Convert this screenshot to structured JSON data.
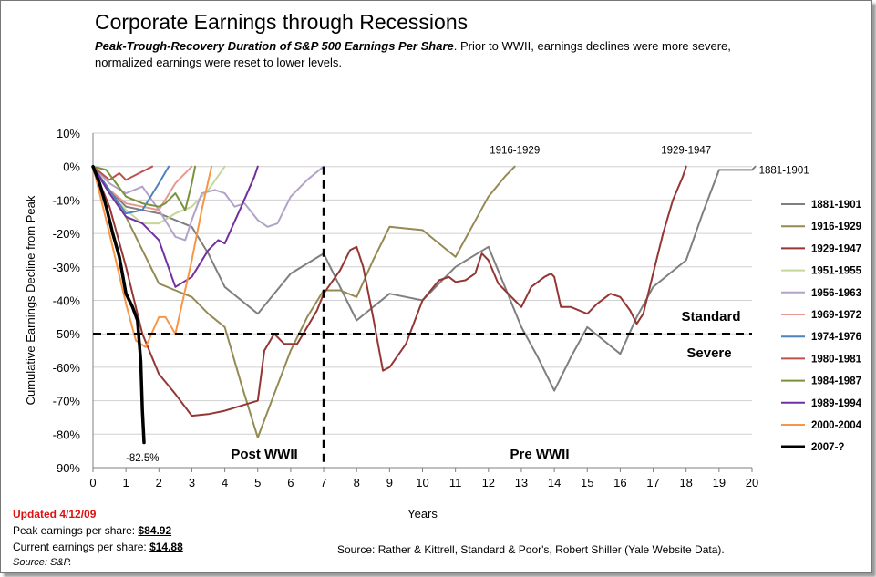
{
  "header": {
    "title": "Corporate Earnings through Recessions",
    "subtitle_emph": "Peak-Trough-Recovery Duration of S&P 500 Earnings Per Share",
    "subtitle_rest": ". Prior to WWII, earnings declines were more severe, normalized earnings were reset to lower levels."
  },
  "footer": {
    "updated": "Updated 4/12/09",
    "peak_label": "Peak earnings per share: ",
    "peak_value": "$84.92",
    "current_label": "Current earnings per share: ",
    "current_value": "$14.88",
    "source_sp": "Source: S&P.",
    "source": "Source: Rather & Kittrell, Standard & Poor's, Robert Shiller (Yale Website Data)."
  },
  "chart_data": {
    "type": "line",
    "xlabel": "Years",
    "ylabel": "Cumulative Earnings Decline from Peak",
    "xlim": [
      0,
      20
    ],
    "ylim": [
      -90,
      10
    ],
    "x_ticks": [
      0,
      1,
      2,
      3,
      4,
      5,
      6,
      7,
      8,
      9,
      10,
      11,
      12,
      13,
      14,
      15,
      16,
      17,
      18,
      19,
      20
    ],
    "x_tick_labels": [
      "0",
      "1",
      "2",
      "3",
      "4",
      "5",
      "6",
      "7",
      "8",
      "9",
      "10",
      "11",
      "12",
      "13",
      "14",
      "15",
      "16",
      "17",
      "18",
      "19",
      "20"
    ],
    "y_ticks": [
      10,
      0,
      -10,
      -20,
      -30,
      -40,
      -50,
      -60,
      -70,
      -80,
      -90
    ],
    "y_tick_labels": [
      "10%",
      "0%",
      "-10%",
      "-20%",
      "-30%",
      "-40%",
      "-50%",
      "-60%",
      "-70%",
      "-80%",
      "-90%"
    ],
    "grid": "horizontal",
    "legend_position": "right",
    "reference_lines": [
      {
        "orientation": "horizontal",
        "value": -50,
        "style": "dashed",
        "label_above": "Standard",
        "label_below": "Severe"
      },
      {
        "orientation": "vertical",
        "value": 7,
        "style": "dashed",
        "label_left": "Post WWII",
        "label_right": "Pre WWII"
      }
    ],
    "annotations": [
      {
        "text": "1916-1929",
        "x": 12.8,
        "y": 5
      },
      {
        "text": "1929-1947",
        "x": 18,
        "y": 5
      },
      {
        "text": "1881-1901",
        "x": 20.1,
        "y": -1
      },
      {
        "text": "-82.5%",
        "x": 1.5,
        "y": -87
      }
    ],
    "series": [
      {
        "name": "1881-1901",
        "color": "#7f7f7f",
        "width": 2,
        "points": [
          [
            0,
            0
          ],
          [
            0.5,
            -7
          ],
          [
            1,
            -12
          ],
          [
            1.5,
            -13
          ],
          [
            2,
            -14
          ],
          [
            2.5,
            -16
          ],
          [
            3,
            -18
          ],
          [
            3.5,
            -26
          ],
          [
            4,
            -36
          ],
          [
            4.5,
            -40
          ],
          [
            5,
            -44
          ],
          [
            5.5,
            -38
          ],
          [
            6,
            -32
          ],
          [
            6.5,
            -29
          ],
          [
            7,
            -26
          ],
          [
            7.5,
            -36
          ],
          [
            8,
            -46
          ],
          [
            8.5,
            -42
          ],
          [
            9,
            -38
          ],
          [
            9.5,
            -39
          ],
          [
            10,
            -40
          ],
          [
            10.5,
            -35
          ],
          [
            11,
            -30
          ],
          [
            11.5,
            -27
          ],
          [
            12,
            -24
          ],
          [
            12.5,
            -36
          ],
          [
            13,
            -48
          ],
          [
            13.5,
            -57
          ],
          [
            14,
            -67
          ],
          [
            14.5,
            -57
          ],
          [
            15,
            -48
          ],
          [
            15.5,
            -52
          ],
          [
            16,
            -56
          ],
          [
            16.5,
            -45
          ],
          [
            17,
            -36
          ],
          [
            17.5,
            -32
          ],
          [
            18,
            -28
          ],
          [
            18.5,
            -14
          ],
          [
            19,
            -1
          ],
          [
            19.5,
            -1
          ],
          [
            20,
            -1
          ],
          [
            20.1,
            0
          ]
        ]
      },
      {
        "name": "1916-1929",
        "color": "#948a54",
        "width": 2,
        "points": [
          [
            0,
            0
          ],
          [
            0.5,
            -8
          ],
          [
            1,
            -15
          ],
          [
            1.5,
            -25
          ],
          [
            2,
            -35
          ],
          [
            2.5,
            -37
          ],
          [
            3,
            -39
          ],
          [
            3.5,
            -44
          ],
          [
            4,
            -48
          ],
          [
            4.5,
            -65
          ],
          [
            5,
            -81
          ],
          [
            5.5,
            -68
          ],
          [
            6,
            -55
          ],
          [
            6.5,
            -45
          ],
          [
            7,
            -37
          ],
          [
            7.5,
            -37
          ],
          [
            8,
            -39
          ],
          [
            8.5,
            -28
          ],
          [
            9,
            -18
          ],
          [
            9.5,
            -18.5
          ],
          [
            10,
            -19
          ],
          [
            10.5,
            -23
          ],
          [
            11,
            -27
          ],
          [
            11.5,
            -18
          ],
          [
            12,
            -9
          ],
          [
            12.5,
            -3
          ],
          [
            12.8,
            0
          ]
        ]
      },
      {
        "name": "1929-1947",
        "color": "#943634",
        "width": 2,
        "points": [
          [
            0,
            0
          ],
          [
            0.5,
            -12
          ],
          [
            1,
            -30
          ],
          [
            1.5,
            -50
          ],
          [
            2,
            -62
          ],
          [
            2.5,
            -68
          ],
          [
            3,
            -74.5
          ],
          [
            3.5,
            -74
          ],
          [
            4,
            -73
          ],
          [
            4.5,
            -71.5
          ],
          [
            5,
            -70
          ],
          [
            5.2,
            -55
          ],
          [
            5.5,
            -50
          ],
          [
            5.8,
            -53
          ],
          [
            6.2,
            -53
          ],
          [
            6.5,
            -48
          ],
          [
            6.8,
            -43
          ],
          [
            7,
            -38
          ],
          [
            7.5,
            -31
          ],
          [
            7.8,
            -25
          ],
          [
            8,
            -24
          ],
          [
            8.2,
            -30
          ],
          [
            8.5,
            -45
          ],
          [
            8.8,
            -61
          ],
          [
            9,
            -60
          ],
          [
            9.5,
            -53
          ],
          [
            10,
            -40
          ],
          [
            10.5,
            -34
          ],
          [
            10.8,
            -33
          ],
          [
            11,
            -34.5
          ],
          [
            11.3,
            -34
          ],
          [
            11.6,
            -32
          ],
          [
            11.8,
            -26
          ],
          [
            12,
            -28
          ],
          [
            12.3,
            -35
          ],
          [
            12.8,
            -40
          ],
          [
            13,
            -42
          ],
          [
            13.3,
            -36
          ],
          [
            13.7,
            -33
          ],
          [
            13.9,
            -32
          ],
          [
            14,
            -33
          ],
          [
            14.2,
            -42
          ],
          [
            14.5,
            -42
          ],
          [
            15,
            -44
          ],
          [
            15.3,
            -41
          ],
          [
            15.7,
            -38
          ],
          [
            16,
            -39
          ],
          [
            16.3,
            -43
          ],
          [
            16.5,
            -47
          ],
          [
            16.7,
            -44
          ],
          [
            17,
            -32
          ],
          [
            17.3,
            -20
          ],
          [
            17.6,
            -10
          ],
          [
            17.9,
            -3
          ],
          [
            18,
            0
          ]
        ]
      },
      {
        "name": "1951-1955",
        "color": "#c4d79b",
        "width": 2,
        "points": [
          [
            0,
            0
          ],
          [
            0.5,
            -8
          ],
          [
            1,
            -13
          ],
          [
            1.5,
            -17
          ],
          [
            2,
            -17
          ],
          [
            2.5,
            -14
          ],
          [
            3,
            -12
          ],
          [
            3.5,
            -7
          ],
          [
            4,
            0
          ]
        ]
      },
      {
        "name": "1956-1963",
        "color": "#b3a2c7",
        "width": 2,
        "points": [
          [
            0,
            0
          ],
          [
            0.5,
            -5
          ],
          [
            1,
            -8
          ],
          [
            1.5,
            -6
          ],
          [
            2,
            -13
          ],
          [
            2.5,
            -21
          ],
          [
            2.8,
            -22
          ],
          [
            3,
            -16
          ],
          [
            3.3,
            -8
          ],
          [
            3.7,
            -7
          ],
          [
            4,
            -8
          ],
          [
            4.3,
            -12
          ],
          [
            4.6,
            -11
          ],
          [
            5,
            -16
          ],
          [
            5.3,
            -18
          ],
          [
            5.6,
            -17
          ],
          [
            6,
            -9
          ],
          [
            6.5,
            -4
          ],
          [
            7,
            0
          ]
        ]
      },
      {
        "name": "1969-1972",
        "color": "#e6998f",
        "width": 2,
        "points": [
          [
            0,
            0
          ],
          [
            0.5,
            -7
          ],
          [
            1,
            -11
          ],
          [
            1.5,
            -12
          ],
          [
            2,
            -13
          ],
          [
            2.5,
            -5
          ],
          [
            3,
            0
          ]
        ]
      },
      {
        "name": "1974-1976",
        "color": "#4f81bd",
        "width": 2,
        "points": [
          [
            0,
            0
          ],
          [
            0.5,
            -7
          ],
          [
            1,
            -14
          ],
          [
            1.5,
            -13
          ],
          [
            2,
            -5
          ],
          [
            2.3,
            0
          ]
        ]
      },
      {
        "name": "1980-1981",
        "color": "#c0504d",
        "width": 2,
        "points": [
          [
            0,
            0
          ],
          [
            0.5,
            -4
          ],
          [
            0.8,
            -2
          ],
          [
            1,
            -4
          ],
          [
            1.4,
            -2
          ],
          [
            1.8,
            0
          ]
        ]
      },
      {
        "name": "1984-1987",
        "color": "#77933c",
        "width": 2,
        "points": [
          [
            0,
            0
          ],
          [
            0.4,
            -1
          ],
          [
            1,
            -9
          ],
          [
            1.5,
            -11
          ],
          [
            2,
            -12
          ],
          [
            2.2,
            -11
          ],
          [
            2.5,
            -8
          ],
          [
            2.8,
            -13
          ],
          [
            3,
            -5
          ],
          [
            3.1,
            0
          ]
        ]
      },
      {
        "name": "1989-1994",
        "color": "#7030a0",
        "width": 2,
        "points": [
          [
            0,
            0
          ],
          [
            0.5,
            -8
          ],
          [
            1,
            -15
          ],
          [
            1.5,
            -17
          ],
          [
            2,
            -22
          ],
          [
            2.5,
            -36
          ],
          [
            3,
            -33
          ],
          [
            3.5,
            -25
          ],
          [
            3.8,
            -22
          ],
          [
            4,
            -23
          ],
          [
            4.5,
            -12
          ],
          [
            4.9,
            -3
          ],
          [
            5,
            0
          ]
        ]
      },
      {
        "name": "2000-2004",
        "color": "#f79646",
        "width": 2,
        "points": [
          [
            0,
            0
          ],
          [
            0.5,
            -20
          ],
          [
            1,
            -41
          ],
          [
            1.3,
            -52
          ],
          [
            1.6,
            -54
          ],
          [
            2,
            -45
          ],
          [
            2.2,
            -45
          ],
          [
            2.5,
            -50
          ],
          [
            3,
            -28
          ],
          [
            3.3,
            -13
          ],
          [
            3.6,
            0
          ]
        ]
      },
      {
        "name": "2007-?",
        "color": "#000000",
        "width": 3.5,
        "points": [
          [
            0,
            0
          ],
          [
            0.2,
            -5
          ],
          [
            0.4,
            -12
          ],
          [
            0.6,
            -20
          ],
          [
            0.8,
            -27
          ],
          [
            1,
            -38
          ],
          [
            1.2,
            -42
          ],
          [
            1.35,
            -46
          ],
          [
            1.45,
            -58
          ],
          [
            1.5,
            -73
          ],
          [
            1.55,
            -82.5
          ]
        ]
      }
    ]
  }
}
